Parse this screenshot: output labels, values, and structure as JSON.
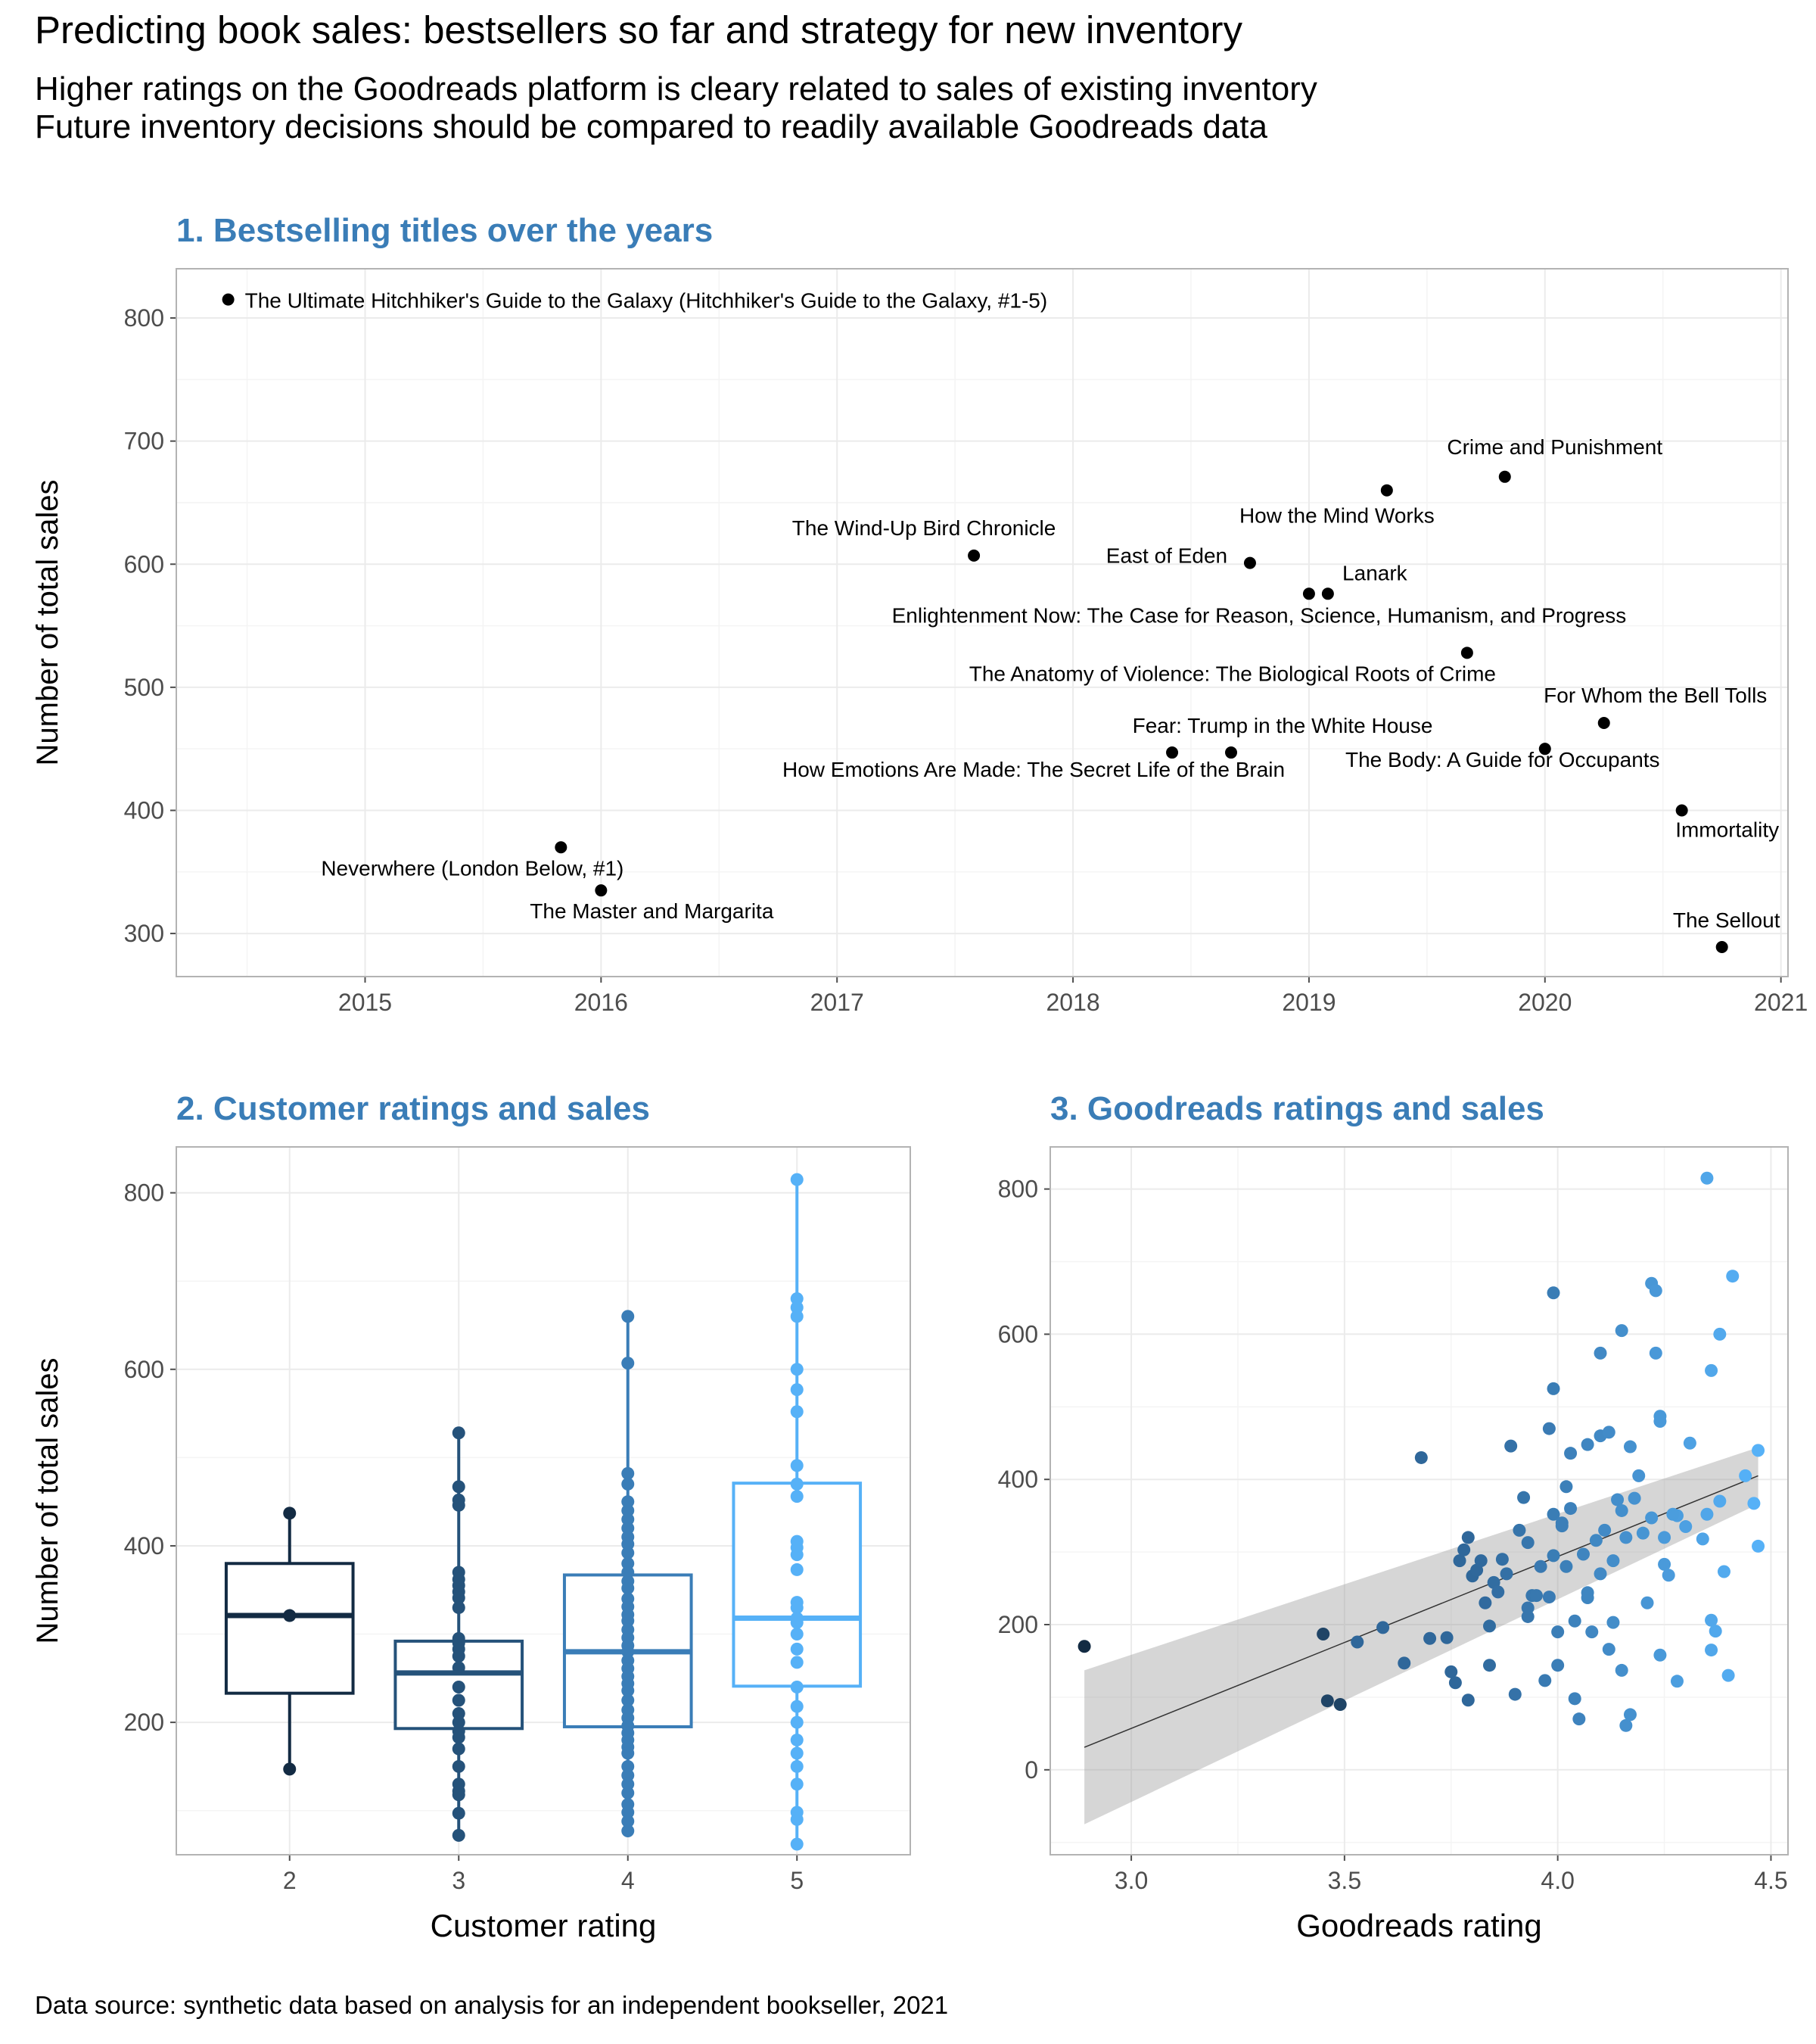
{
  "title": "Predicting book sales: bestsellers so far and strategy for new inventory",
  "subtitle_lines": [
    "Higher ratings on the Goodreads platform is cleary related to sales of existing inventory",
    "Future inventory decisions should be compared to readily available Goodreads data"
  ],
  "caption": "Data source: synthetic data based on analysis for an independent bookseller, 2021",
  "chart_data": [
    {
      "type": "scatter",
      "title": "1. Bestselling titles over the years",
      "xlabel": "",
      "ylabel": "Number of total sales",
      "xlim": [
        2014.2,
        2021.03
      ],
      "ylim": [
        265,
        840
      ],
      "xticks": [
        2015,
        2016,
        2017,
        2018,
        2019,
        2020,
        2021
      ],
      "yticks": [
        300,
        400,
        500,
        600,
        700,
        800
      ],
      "grid": true,
      "points": [
        {
          "x": 2014.42,
          "y": 815,
          "label": "The Ultimate Hitchhiker's Guide to the Galaxy (Hitchhiker's Guide to the Galaxy, #1-5)"
        },
        {
          "x": 2019.83,
          "y": 671,
          "label": "Crime and Punishment"
        },
        {
          "x": 2019.33,
          "y": 660,
          "label": "How the Mind Works"
        },
        {
          "x": 2017.58,
          "y": 607,
          "label": "The Wind-Up Bird Chronicle"
        },
        {
          "x": 2018.75,
          "y": 601,
          "label": "East of Eden"
        },
        {
          "x": 2019.08,
          "y": 576,
          "label": "Lanark"
        },
        {
          "x": 2019.0,
          "y": 576,
          "label": "Enlightenment Now: The Case for Reason, Science, Humanism, and Progress"
        },
        {
          "x": 2019.67,
          "y": 528,
          "label": "The Anatomy of Violence: The Biological Roots of Crime"
        },
        {
          "x": 2020.25,
          "y": 471,
          "label": "For Whom the Bell Tolls"
        },
        {
          "x": 2018.67,
          "y": 447,
          "label": "Fear: Trump in the White House"
        },
        {
          "x": 2018.42,
          "y": 447,
          "label": "How Emotions Are Made: The Secret Life of the Brain"
        },
        {
          "x": 2020.0,
          "y": 450,
          "label": "The Body: A Guide for Occupants"
        },
        {
          "x": 2020.58,
          "y": 400,
          "label": "Immortality"
        },
        {
          "x": 2015.83,
          "y": 370,
          "label": "Neverwhere (London Below, #1)"
        },
        {
          "x": 2016.0,
          "y": 335,
          "label": "The Master and Margarita"
        },
        {
          "x": 2020.75,
          "y": 289,
          "label": "The Sellout"
        }
      ]
    },
    {
      "type": "box",
      "title": "2. Customer ratings and sales",
      "xlabel": "Customer rating",
      "ylabel": "Number of total sales",
      "categories": [
        "2",
        "3",
        "4",
        "5"
      ],
      "ylim": [
        50,
        852
      ],
      "yticks": [
        200,
        400,
        600,
        800
      ],
      "colors": [
        "#132b43",
        "#25527a",
        "#3a7db7",
        "#56b1f7"
      ],
      "boxes": [
        {
          "q1": 233,
          "median": 321,
          "q3": 380,
          "lower_whisker": 147,
          "upper_whisker": 437
        },
        {
          "q1": 193,
          "median": 256,
          "q3": 292,
          "lower_whisker": 72,
          "upper_whisker": 528
        },
        {
          "q1": 195,
          "median": 280,
          "q3": 367,
          "lower_whisker": 77,
          "upper_whisker": 660
        },
        {
          "q1": 241,
          "median": 318,
          "q3": 471,
          "lower_whisker": 62,
          "upper_whisker": 815
        }
      ],
      "points": [
        [
          437,
          321,
          147
        ],
        [
          528,
          467,
          452,
          446,
          370,
          362,
          355,
          348,
          341,
          330,
          295,
          290,
          283,
          275,
          262,
          240,
          225,
          210,
          200,
          190,
          183,
          170,
          150,
          130,
          122,
          118,
          97,
          72
        ],
        [
          660,
          607,
          482,
          470,
          450,
          440,
          430,
          420,
          410,
          402,
          392,
          380,
          370,
          360,
          352,
          340,
          331,
          322,
          315,
          305,
          296,
          287,
          280,
          270,
          261,
          252,
          244,
          236,
          225,
          214,
          205,
          196,
          188,
          180,
          172,
          165,
          150,
          140,
          130,
          120,
          107,
          98,
          88,
          77
        ],
        [
          815,
          680,
          670,
          660,
          600,
          577,
          552,
          491,
          470,
          456,
          405,
          398,
          390,
          373,
          336,
          330,
          318,
          313,
          300,
          283,
          268,
          240,
          218,
          200,
          180,
          165,
          150,
          130,
          98,
          90,
          62
        ]
      ]
    },
    {
      "type": "scatter",
      "title": "3. Goodreads ratings and sales",
      "xlabel": "Goodreads rating",
      "ylabel": "",
      "xlim": [
        2.81,
        4.54
      ],
      "ylim": [
        -117,
        858
      ],
      "xticks": [
        3.0,
        3.5,
        4.0,
        4.5
      ],
      "yticks": [
        0,
        200,
        400,
        600,
        800
      ],
      "grid": true,
      "trend": {
        "x": [
          2.89,
          4.47
        ],
        "fit": [
          31,
          405
        ],
        "lower": [
          -75,
          366
        ],
        "upper": [
          137,
          444
        ]
      },
      "points": [
        [
          2.89,
          170
        ],
        [
          3.45,
          187
        ],
        [
          3.46,
          95
        ],
        [
          3.49,
          90
        ],
        [
          3.53,
          176
        ],
        [
          3.59,
          196
        ],
        [
          3.64,
          147
        ],
        [
          3.68,
          430
        ],
        [
          3.7,
          181
        ],
        [
          3.74,
          182
        ],
        [
          3.75,
          135
        ],
        [
          3.76,
          120
        ],
        [
          3.77,
          288
        ],
        [
          3.78,
          303
        ],
        [
          3.79,
          320
        ],
        [
          3.79,
          96
        ],
        [
          3.8,
          267
        ],
        [
          3.81,
          275
        ],
        [
          3.82,
          288
        ],
        [
          3.83,
          230
        ],
        [
          3.84,
          198
        ],
        [
          3.84,
          144
        ],
        [
          3.85,
          258
        ],
        [
          3.86,
          245
        ],
        [
          3.87,
          290
        ],
        [
          3.88,
          270
        ],
        [
          3.89,
          446
        ],
        [
          3.9,
          104
        ],
        [
          3.91,
          330
        ],
        [
          3.92,
          375
        ],
        [
          3.93,
          211
        ],
        [
          3.93,
          223
        ],
        [
          3.94,
          240
        ],
        [
          3.95,
          240
        ],
        [
          3.96,
          280
        ],
        [
          3.97,
          123
        ],
        [
          3.98,
          238
        ],
        [
          3.98,
          470
        ],
        [
          3.99,
          657
        ],
        [
          3.99,
          525
        ],
        [
          3.99,
          352
        ],
        [
          3.99,
          295
        ],
        [
          4.0,
          144
        ],
        [
          4.0,
          190
        ],
        [
          4.01,
          336
        ],
        [
          4.01,
          340
        ],
        [
          4.02,
          390
        ],
        [
          4.03,
          436
        ],
        [
          4.04,
          205
        ],
        [
          4.04,
          98
        ],
        [
          4.05,
          70
        ],
        [
          4.06,
          297
        ],
        [
          4.07,
          448
        ],
        [
          4.07,
          237
        ],
        [
          4.07,
          244
        ],
        [
          4.08,
          190
        ],
        [
          4.09,
          316
        ],
        [
          4.1,
          460
        ],
        [
          4.1,
          574
        ],
        [
          4.11,
          330
        ],
        [
          4.12,
          166
        ],
        [
          4.12,
          465
        ],
        [
          4.13,
          288
        ],
        [
          4.13,
          203
        ],
        [
          4.14,
          372
        ],
        [
          4.15,
          357
        ],
        [
          4.15,
          605
        ],
        [
          4.15,
          137
        ],
        [
          4.16,
          61
        ],
        [
          4.16,
          320
        ],
        [
          4.17,
          76
        ],
        [
          4.17,
          445
        ],
        [
          4.18,
          374
        ],
        [
          4.19,
          405
        ],
        [
          4.21,
          230
        ],
        [
          4.22,
          347
        ],
        [
          4.22,
          670
        ],
        [
          4.23,
          660
        ],
        [
          4.23,
          574
        ],
        [
          4.24,
          480
        ],
        [
          4.24,
          487
        ],
        [
          4.24,
          158
        ],
        [
          4.25,
          283
        ],
        [
          4.25,
          320
        ],
        [
          4.26,
          268
        ],
        [
          4.28,
          350
        ],
        [
          4.28,
          122
        ],
        [
          4.3,
          335
        ],
        [
          4.31,
          450
        ],
        [
          4.34,
          318
        ],
        [
          4.35,
          352
        ],
        [
          4.35,
          815
        ],
        [
          4.36,
          165
        ],
        [
          4.36,
          206
        ],
        [
          4.36,
          550
        ],
        [
          4.37,
          191
        ],
        [
          4.38,
          600
        ],
        [
          4.38,
          370
        ],
        [
          4.39,
          273
        ],
        [
          4.4,
          130
        ],
        [
          4.41,
          680
        ],
        [
          4.44,
          405
        ],
        [
          4.46,
          367
        ],
        [
          4.47,
          440
        ],
        [
          4.47,
          308
        ],
        [
          4.02,
          280
        ],
        [
          4.2,
          326
        ],
        [
          4.27,
          352
        ],
        [
          3.93,
          313
        ],
        [
          4.1,
          270
        ],
        [
          4.03,
          360
        ]
      ]
    }
  ]
}
